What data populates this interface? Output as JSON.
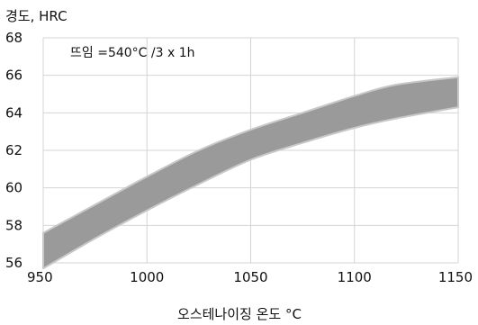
{
  "chart_data": {
    "type": "area",
    "title": "",
    "ylabel": "경도, HRC",
    "xlabel": "오스테나이징 온도 °C",
    "annotation": "뜨임 =540°C /3 x 1h",
    "xlim": [
      950,
      1150
    ],
    "ylim": [
      56,
      68
    ],
    "x_ticks": [
      "950",
      "1000",
      "1050",
      "1100",
      "1150"
    ],
    "y_ticks": [
      "56",
      "58",
      "60",
      "62",
      "64",
      "66",
      "68"
    ],
    "grid": true,
    "fill_color": "#9a9a9a",
    "edge_color": "#c8c8c8",
    "series": [
      {
        "x": [
          950,
          975,
          1000,
          1025,
          1050,
          1075,
          1100,
          1120,
          1150
        ],
        "upper": [
          57.6,
          59.1,
          60.6,
          62.0,
          63.1,
          64.0,
          64.9,
          65.5,
          65.9
        ],
        "lower": [
          55.7,
          57.3,
          58.8,
          60.2,
          61.5,
          62.4,
          63.2,
          63.7,
          64.3
        ]
      }
    ]
  }
}
